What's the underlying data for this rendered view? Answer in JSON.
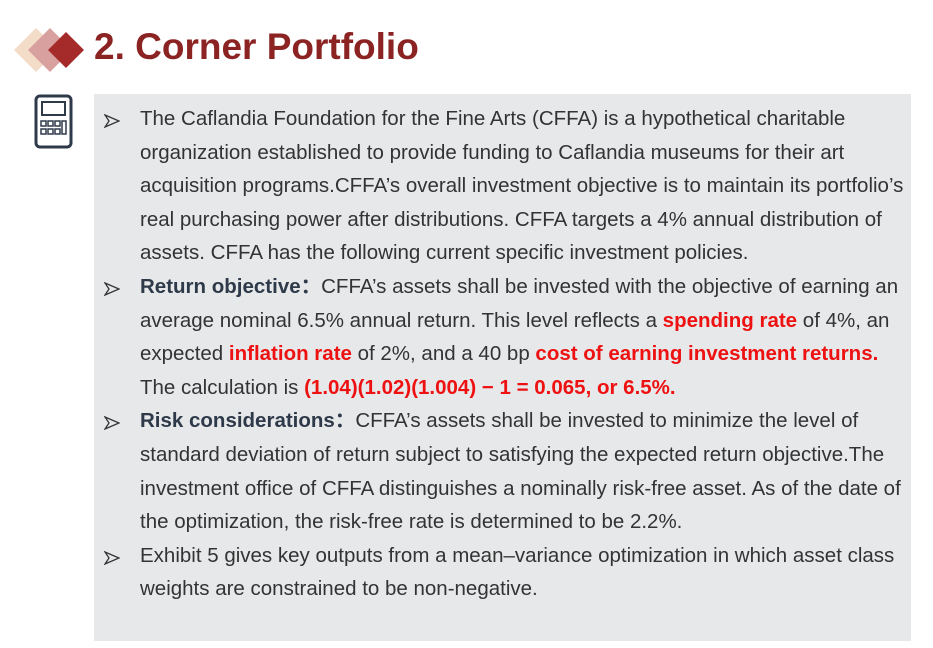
{
  "header": {
    "title": "2. Corner Portfolio"
  },
  "bullets": [
    {
      "segments": [
        {
          "text": "The Caflandia Foundation for the Fine Arts (CFFA) is a hypothetical charitable organization established to provide funding to Caflandia museums for their art acquisition programs.CFFA’s overall investment objective is to maintain its portfolio’s real purchasing power after distributions. CFFA targets a 4% annual distribution of assets. CFFA has the following current specific investment policies.",
          "style": "plain"
        }
      ]
    },
    {
      "segments": [
        {
          "text": "Return objective：",
          "style": "bold"
        },
        {
          "text": "CFFA’s assets shall be invested with the objective of earning an average nominal 6.5% annual return. This level reflects a ",
          "style": "plain"
        },
        {
          "text": "spending rate",
          "style": "red"
        },
        {
          "text": " of 4%, an expected ",
          "style": "plain"
        },
        {
          "text": "inflation rate",
          "style": "red"
        },
        {
          "text": " of 2%, and a 40 bp ",
          "style": "plain"
        },
        {
          "text": "cost of earning investment returns.",
          "style": "red"
        },
        {
          "text": " The calculation is ",
          "style": "plain"
        },
        {
          "text": "(1.04)(1.02)(1.004) − 1 = 0.065, or 6.5%.",
          "style": "red"
        }
      ]
    },
    {
      "segments": [
        {
          "text": "Risk considerations：",
          "style": "bold"
        },
        {
          "text": "CFFA’s assets shall be invested to minimize the level of standard deviation of return subject to satisfying the expected return objective.The investment office of CFFA distinguishes a nominally risk-free asset. As of the date of the optimization, the risk-free rate is determined to be 2.2%.",
          "style": "plain"
        }
      ]
    },
    {
      "segments": [
        {
          "text": "Exhibit 5 gives key outputs from a mean–variance optimization in which asset class weights are constrained to be non-negative.",
          "style": "plain"
        }
      ]
    }
  ]
}
